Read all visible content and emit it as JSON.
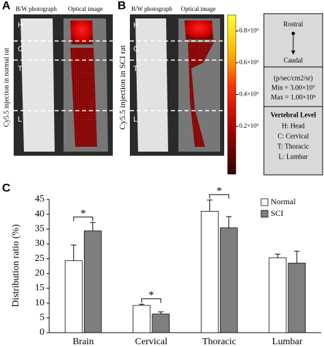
{
  "panels": {
    "a": {
      "label": "A",
      "photo_title": "B/W photograph",
      "optical_title": "Optical image",
      "side_label": "Cy5.5 injection in normal rat",
      "regions": [
        "H",
        "C",
        "T",
        "L"
      ]
    },
    "b": {
      "label": "B",
      "photo_title": "B/W photograph",
      "optical_title": "Optical image",
      "side_label": "Cy5.5 injection in SCI rat",
      "regions": [
        "H",
        "C",
        "T",
        "L"
      ]
    },
    "colorbar": {
      "lim": [
        -100000000,
        900000000
      ],
      "ticks": [
        {
          "value": 800000000,
          "label": "0.8×10⁹"
        },
        {
          "value": 600000000,
          "label": "0.6×10⁹"
        },
        {
          "value": 400000000,
          "label": "0.4×10⁹"
        },
        {
          "value": 200000000,
          "label": "0.2×10⁹"
        }
      ]
    },
    "info": {
      "top": "Rostral",
      "bottom": "Caudal",
      "units": "(p/sec/cm2/sr)",
      "min": "Min = 3.00×10⁷",
      "max": "Max = 1.00×10⁹",
      "legend_title": "Vertebral Level",
      "legend_items": [
        "H: Head",
        "C: Cervical",
        "T: Thoracic",
        "L: Lumbar"
      ]
    },
    "c": {
      "label": "C"
    }
  },
  "chart_data": {
    "type": "bar",
    "y_label": "Distribution ratio (%)",
    "categories": [
      "Brain",
      "Cervical",
      "Thoracic",
      "Lumbar"
    ],
    "series": [
      {
        "name": "Normal",
        "color": "#ffffff",
        "values": [
          24.3,
          9.2,
          41,
          25.3
        ],
        "errors": [
          5.3,
          0.4,
          3.8,
          1.2
        ]
      },
      {
        "name": "SCI",
        "color": "#7f7f7f",
        "values": [
          34.4,
          6.3,
          35.4,
          23.5
        ],
        "errors": [
          2.8,
          0.7,
          3.8,
          4
        ]
      }
    ],
    "annotations": [
      "*",
      "*",
      "*"
    ],
    "ylim": [
      0,
      45
    ],
    "yticks": [
      0,
      5,
      10,
      15,
      20,
      25,
      30,
      35,
      40,
      45
    ],
    "legend": "upper right"
  }
}
